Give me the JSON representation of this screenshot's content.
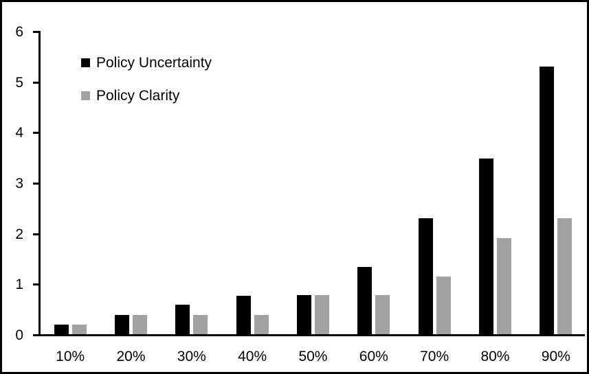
{
  "figure": {
    "background": "#ffffff",
    "border_color": "#000000"
  },
  "legend": {
    "position": "upper-left-inside",
    "items": [
      {
        "label": "Policy Uncertainty",
        "color": "#000000"
      },
      {
        "label": "Policy Clarity",
        "color": "#a2a2a2"
      }
    ]
  },
  "chart_data": {
    "type": "bar",
    "title": "",
    "xlabel": "",
    "ylabel": "",
    "categories": [
      "10%",
      "20%",
      "30%",
      "40%",
      "50%",
      "60%",
      "70%",
      "80%",
      "90%"
    ],
    "series": [
      {
        "name": "Policy Uncertainty",
        "color": "#000000",
        "values": [
          0.19,
          0.38,
          0.58,
          0.76,
          0.78,
          1.33,
          2.3,
          3.48,
          5.3
        ]
      },
      {
        "name": "Policy Clarity",
        "color": "#a2a2a2",
        "values": [
          0.19,
          0.38,
          0.38,
          0.38,
          0.77,
          0.77,
          1.14,
          1.9,
          2.3
        ]
      }
    ],
    "ylim": [
      0,
      6
    ],
    "yticks": [
      0,
      1,
      2,
      3,
      4,
      5,
      6
    ],
    "grid": false,
    "legend_position": "upper-left-inside"
  }
}
